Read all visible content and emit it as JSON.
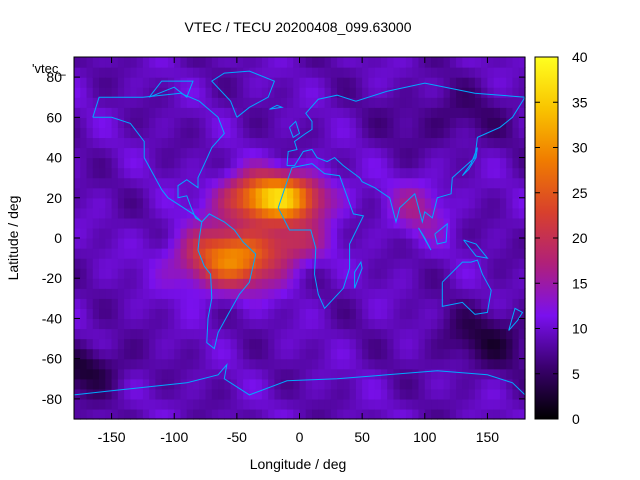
{
  "chart_data": {
    "type": "heatmap",
    "title": "VTEC / TECU 20200408_099.63000",
    "xlabel": "Longitude / deg",
    "ylabel": "Latitude / deg",
    "key_label": "'vtec_",
    "xlim": [
      -180,
      180
    ],
    "ylim": [
      -90,
      90
    ],
    "x_ticks": [
      -150,
      -100,
      -50,
      0,
      50,
      100,
      150
    ],
    "y_ticks": [
      -80,
      -60,
      -40,
      -20,
      0,
      20,
      40,
      60,
      80
    ],
    "colorbar": {
      "range": [
        0,
        40
      ],
      "ticks": [
        0,
        5,
        10,
        15,
        20,
        25,
        30,
        35,
        40
      ],
      "palette": [
        "#000000",
        "#3a006e",
        "#7a10ee",
        "#b0207a",
        "#d8402c",
        "#f07c00",
        "#f9c400",
        "#ffff20"
      ]
    },
    "coastline_color": "#00aaff",
    "grid_step_deg": 5,
    "field": {
      "background_vtec": 9,
      "peaks": [
        {
          "lon": -20,
          "lat": 20,
          "sigma_lon": 38,
          "sigma_lat": 12,
          "vtec": 27
        },
        {
          "lon": -55,
          "lat": -10,
          "sigma_lon": 40,
          "sigma_lat": 15,
          "vtec": 20
        },
        {
          "lon": -5,
          "lat": -2,
          "sigma_lon": 25,
          "sigma_lat": 10,
          "vtec": 8
        },
        {
          "lon": 95,
          "lat": 15,
          "sigma_lon": 25,
          "sigma_lat": 15,
          "vtec": 6
        }
      ],
      "troughs": [
        {
          "lon": -170,
          "lat": -65,
          "sigma_lon": 30,
          "sigma_lat": 12,
          "vtec": -6
        },
        {
          "lon": 150,
          "lat": -50,
          "sigma_lon": 40,
          "sigma_lat": 15,
          "vtec": -5
        },
        {
          "lon": 120,
          "lat": 60,
          "sigma_lon": 50,
          "sigma_lat": 15,
          "vtec": -3
        }
      ]
    },
    "coastlines": [
      [
        [
          -165,
          60
        ],
        [
          -160,
          70
        ],
        [
          -140,
          70
        ],
        [
          -125,
          70
        ],
        [
          -95,
          72
        ],
        [
          -80,
          68
        ],
        [
          -65,
          60
        ],
        [
          -60,
          52
        ],
        [
          -70,
          45
        ],
        [
          -75,
          38
        ],
        [
          -81,
          30
        ],
        [
          -81,
          25
        ],
        [
          -90,
          29
        ],
        [
          -97,
          26
        ],
        [
          -97,
          20
        ],
        [
          -90,
          21
        ],
        [
          -87,
          16
        ],
        [
          -83,
          10
        ],
        [
          -78,
          8
        ],
        [
          -85,
          12
        ],
        [
          -95,
          16
        ],
        [
          -105,
          20
        ],
        [
          -110,
          24
        ],
        [
          -117,
          32
        ],
        [
          -124,
          40
        ],
        [
          -124,
          48
        ],
        [
          -135,
          57
        ],
        [
          -150,
          60
        ],
        [
          -165,
          60
        ]
      ],
      [
        [
          -78,
          8
        ],
        [
          -80,
          0
        ],
        [
          -81,
          -6
        ],
        [
          -76,
          -14
        ],
        [
          -71,
          -18
        ],
        [
          -70,
          -30
        ],
        [
          -73,
          -40
        ],
        [
          -74,
          -52
        ],
        [
          -68,
          -55
        ],
        [
          -65,
          -47
        ],
        [
          -57,
          -38
        ],
        [
          -48,
          -28
        ],
        [
          -40,
          -22
        ],
        [
          -35,
          -8
        ],
        [
          -45,
          -2
        ],
        [
          -52,
          4
        ],
        [
          -60,
          8
        ],
        [
          -72,
          12
        ],
        [
          -78,
          8
        ]
      ],
      [
        [
          -17,
          15
        ],
        [
          -10,
          28
        ],
        [
          -6,
          35
        ],
        [
          10,
          37
        ],
        [
          20,
          32
        ],
        [
          32,
          31
        ],
        [
          43,
          12
        ],
        [
          51,
          11
        ],
        [
          40,
          -3
        ],
        [
          40,
          -15
        ],
        [
          35,
          -25
        ],
        [
          20,
          -35
        ],
        [
          15,
          -28
        ],
        [
          12,
          -18
        ],
        [
          13,
          -5
        ],
        [
          9,
          4
        ],
        [
          -8,
          4
        ],
        [
          -17,
          15
        ]
      ],
      [
        [
          -10,
          36
        ],
        [
          -9,
          43
        ],
        [
          -2,
          44
        ],
        [
          -4,
          48
        ],
        [
          5,
          52
        ],
        [
          10,
          54
        ],
        [
          10,
          58
        ],
        [
          5,
          62
        ],
        [
          15,
          69
        ],
        [
          30,
          71
        ],
        [
          45,
          68
        ],
        [
          70,
          73
        ],
        [
          100,
          77
        ],
        [
          140,
          72
        ],
        [
          180,
          70
        ],
        [
          170,
          60
        ],
        [
          160,
          55
        ],
        [
          142,
          50
        ],
        [
          140,
          40
        ],
        [
          122,
          30
        ],
        [
          121,
          22
        ],
        [
          110,
          20
        ],
        [
          106,
          10
        ],
        [
          100,
          13
        ],
        [
          98,
          8
        ],
        [
          92,
          22
        ],
        [
          80,
          15
        ],
        [
          77,
          8
        ],
        [
          72,
          20
        ],
        [
          60,
          25
        ],
        [
          50,
          28
        ],
        [
          48,
          30
        ],
        [
          35,
          36
        ],
        [
          28,
          40
        ],
        [
          22,
          38
        ],
        [
          14,
          40
        ],
        [
          10,
          44
        ],
        [
          3,
          43
        ],
        [
          -4,
          36
        ],
        [
          -10,
          36
        ]
      ],
      [
        [
          114,
          -22
        ],
        [
          114,
          -34
        ],
        [
          130,
          -32
        ],
        [
          140,
          -38
        ],
        [
          150,
          -37
        ],
        [
          153,
          -26
        ],
        [
          146,
          -18
        ],
        [
          142,
          -11
        ],
        [
          137,
          -12
        ],
        [
          130,
          -12
        ],
        [
          114,
          -22
        ]
      ],
      [
        [
          -180,
          -78
        ],
        [
          -150,
          -76
        ],
        [
          -120,
          -74
        ],
        [
          -90,
          -72
        ],
        [
          -65,
          -68
        ],
        [
          -58,
          -63
        ],
        [
          -60,
          -70
        ],
        [
          -40,
          -78
        ],
        [
          -10,
          -71
        ],
        [
          30,
          -70
        ],
        [
          70,
          -68
        ],
        [
          110,
          -66
        ],
        [
          150,
          -68
        ],
        [
          170,
          -72
        ],
        [
          180,
          -78
        ]
      ],
      [
        [
          -50,
          60
        ],
        [
          -40,
          65
        ],
        [
          -25,
          70
        ],
        [
          -20,
          78
        ],
        [
          -40,
          83
        ],
        [
          -60,
          82
        ],
        [
          -70,
          78
        ],
        [
          -55,
          68
        ],
        [
          -50,
          60
        ]
      ],
      [
        [
          -120,
          70
        ],
        [
          -100,
          75
        ],
        [
          -90,
          70
        ],
        [
          -85,
          78
        ],
        [
          -110,
          78
        ],
        [
          -120,
          70
        ]
      ],
      [
        [
          -8,
          55
        ],
        [
          -3,
          58
        ],
        [
          0,
          52
        ],
        [
          -5,
          50
        ],
        [
          -8,
          55
        ]
      ],
      [
        [
          130,
          31
        ],
        [
          135,
          34
        ],
        [
          141,
          40
        ],
        [
          142,
          45
        ],
        [
          137,
          37
        ],
        [
          130,
          31
        ]
      ],
      [
        [
          95,
          5
        ],
        [
          105,
          -6
        ],
        [
          100,
          0
        ],
        [
          95,
          5
        ]
      ],
      [
        [
          108,
          2
        ],
        [
          118,
          7
        ],
        [
          117,
          -2
        ],
        [
          110,
          -3
        ],
        [
          108,
          2
        ]
      ],
      [
        [
          131,
          -1
        ],
        [
          141,
          -3
        ],
        [
          150,
          -10
        ],
        [
          141,
          -9
        ],
        [
          131,
          -1
        ]
      ],
      [
        [
          44,
          -25
        ],
        [
          50,
          -15
        ],
        [
          49,
          -12
        ],
        [
          44,
          -17
        ],
        [
          44,
          -25
        ]
      ],
      [
        [
          167,
          -46
        ],
        [
          174,
          -41
        ],
        [
          178,
          -37
        ],
        [
          172,
          -35
        ],
        [
          167,
          -46
        ]
      ],
      [
        [
          -24,
          64
        ],
        [
          -14,
          65
        ],
        [
          -18,
          66
        ],
        [
          -24,
          64
        ]
      ]
    ]
  }
}
